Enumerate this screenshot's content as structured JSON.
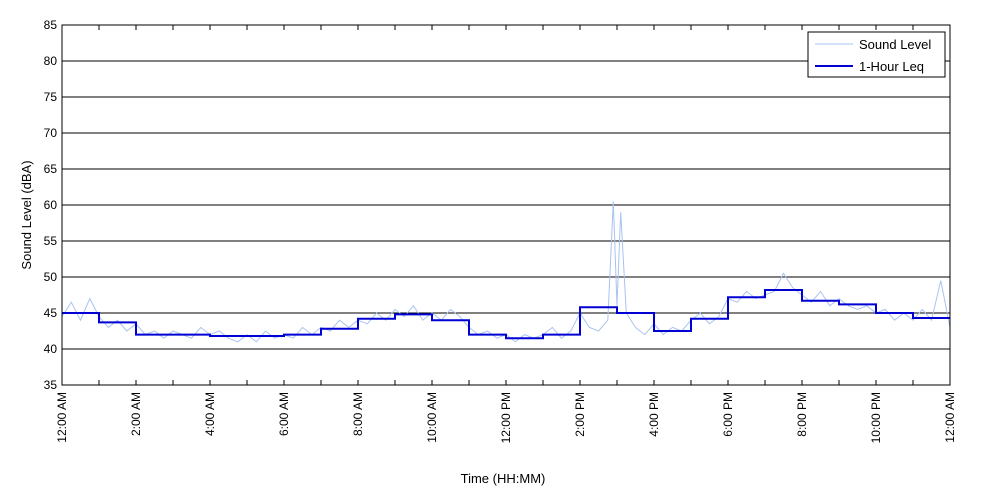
{
  "chart_data": {
    "type": "line",
    "xlabel": "Time (HH:MM)",
    "ylabel": "Sound Level (dBA)",
    "xlim": [
      0,
      24
    ],
    "ylim": [
      35,
      85
    ],
    "y_ticks": [
      35,
      40,
      45,
      50,
      55,
      60,
      65,
      70,
      75,
      80,
      85
    ],
    "x_ticks": [
      0,
      2,
      4,
      6,
      8,
      10,
      12,
      14,
      16,
      18,
      20,
      22,
      24
    ],
    "x_tick_labels": [
      "12:00 AM",
      "2:00 AM",
      "4:00 AM",
      "6:00 AM",
      "8:00 AM",
      "10:00 AM",
      "12:00 PM",
      "2:00 PM",
      "4:00 PM",
      "6:00 PM",
      "8:00 PM",
      "10:00 PM",
      "12:00 AM"
    ],
    "grid": "horizontal",
    "legend_position": "top-right",
    "series": [
      {
        "name": "Sound Level",
        "color": "#a9c3f0",
        "style": "thin line",
        "x": [
          0,
          0.25,
          0.5,
          0.75,
          1.0,
          1.25,
          1.5,
          1.75,
          2.0,
          2.25,
          2.5,
          2.75,
          3.0,
          3.25,
          3.5,
          3.75,
          4.0,
          4.25,
          4.5,
          4.75,
          5.0,
          5.25,
          5.5,
          5.75,
          6.0,
          6.25,
          6.5,
          6.75,
          7.0,
          7.25,
          7.5,
          7.75,
          8.0,
          8.25,
          8.5,
          8.75,
          9.0,
          9.25,
          9.5,
          9.75,
          10.0,
          10.25,
          10.5,
          10.75,
          11.0,
          11.25,
          11.5,
          11.75,
          12.0,
          12.25,
          12.5,
          12.75,
          13.0,
          13.25,
          13.5,
          13.75,
          14.0,
          14.25,
          14.5,
          14.75,
          14.9,
          15.0,
          15.1,
          15.25,
          15.5,
          15.75,
          16.0,
          16.25,
          16.5,
          16.75,
          17.0,
          17.25,
          17.5,
          17.75,
          18.0,
          18.25,
          18.5,
          18.75,
          19.0,
          19.25,
          19.5,
          19.75,
          20.0,
          20.25,
          20.5,
          20.75,
          21.0,
          21.25,
          21.5,
          21.75,
          22.0,
          22.25,
          22.5,
          22.75,
          23.0,
          23.25,
          23.5,
          23.75,
          24.0
        ],
        "y": [
          44.5,
          46.5,
          44.0,
          47.0,
          44.5,
          43.0,
          44.0,
          42.5,
          43.5,
          42.0,
          42.5,
          41.5,
          42.5,
          42.0,
          41.5,
          43.0,
          42.0,
          42.5,
          41.5,
          41.0,
          42.0,
          41.0,
          42.5,
          41.5,
          42.0,
          41.5,
          43.0,
          42.0,
          43.0,
          42.5,
          44.0,
          43.0,
          44.0,
          43.5,
          45.0,
          44.0,
          45.5,
          44.5,
          46.0,
          44.0,
          45.0,
          44.0,
          45.5,
          44.5,
          43.0,
          42.0,
          42.5,
          41.5,
          42.0,
          41.0,
          42.0,
          41.5,
          42.0,
          43.0,
          41.5,
          42.5,
          45.0,
          43.0,
          42.5,
          44.0,
          60.5,
          46.0,
          59.0,
          45.0,
          43.0,
          42.0,
          43.5,
          42.0,
          43.0,
          42.5,
          44.0,
          45.0,
          43.5,
          44.5,
          47.0,
          46.5,
          48.0,
          47.0,
          47.5,
          48.0,
          50.5,
          48.5,
          47.5,
          46.5,
          48.0,
          46.0,
          47.0,
          46.0,
          45.5,
          46.0,
          45.0,
          45.5,
          44.0,
          45.0,
          44.0,
          45.5,
          44.0,
          49.5,
          43.0
        ]
      },
      {
        "name": "1-Hour Leq",
        "color": "#0000d4",
        "style": "step",
        "x": [
          0,
          1,
          2,
          3,
          4,
          5,
          6,
          7,
          8,
          9,
          10,
          11,
          12,
          13,
          14,
          15,
          16,
          17,
          18,
          19,
          20,
          21,
          22,
          23
        ],
        "values": [
          45.0,
          43.7,
          42.0,
          42.0,
          41.8,
          41.8,
          42.0,
          42.8,
          44.2,
          44.8,
          44.0,
          42.0,
          41.5,
          42.0,
          45.8,
          45.0,
          42.5,
          44.2,
          47.2,
          48.2,
          46.7,
          46.2,
          45.0,
          44.3
        ]
      }
    ]
  }
}
